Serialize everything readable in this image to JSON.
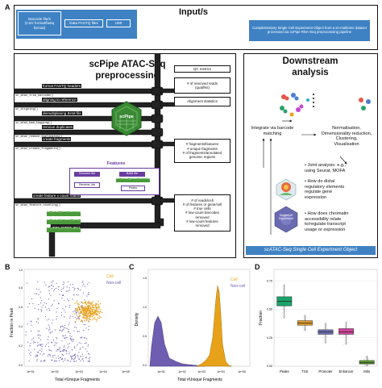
{
  "panel_labels": {
    "a": "A",
    "b": "B",
    "c": "C",
    "d": "D"
  },
  "inputs": {
    "title": "Input/s",
    "barcode_files": "Barcode file/s\n(CSV format/fastq\nformat)",
    "data_fastq": "Data FASTQ files",
    "umi": "UMI",
    "complementary": "Complementary Single Cell Experiment Object from a sn-multiome dataset processed via scPipe RNA-Seq preprocessing pipeline"
  },
  "preprocessing": {
    "title_line1": "scPipe ATAC-Seq",
    "title_line2": "preprocessing",
    "logo_text": "scPipe",
    "steps": [
      {
        "label": "format FASTQ headers",
        "func": "sc_atac_trim_barcode()"
      },
      {
        "label": "aligning to reference",
        "func": "sc_aligning()"
      },
      {
        "label": "demultiplexing BAM file",
        "func": "sc_atac_bam_tagging()"
      },
      {
        "label": "remove duplicates",
        "func": "sc_atac_remove_duplicates()"
      },
      {
        "label": "create fragments",
        "func": "sc_atac_create_fragments()"
      },
      {
        "label": "create feature x count matrix",
        "func": "sc_atac_feature_counting()"
      }
    ],
    "qc_title": "QC metrics",
    "qc_boxes": [
      "# of removed reads\n(qual/Ns)",
      "Alignment statistics",
      "# fragments/features\n# unique fragments\n# of fragments/annotated\ngenomic regions",
      "# of reads/cell\n# of features or gene/cell\n# true cells\n# low-count barcodes\nremoved\n# low-count features\nremoved"
    ],
    "features": {
      "title": "Features",
      "genome_file": "Genome file",
      "bam_file": "BAM file",
      "genome_bin": "Genome_bin",
      "peak_calling": "sc_atac_peak_calling()",
      "peaks": "Peaks"
    },
    "green_funcs": [
      "sc_atac_cell_calling()",
      "sc_atac_create_sce()",
      "sc_atac_create_qc()"
    ]
  },
  "downstream": {
    "title_line1": "Downstream",
    "title_line2": "analysis",
    "integrate": "Integrate via barcode\nmatching",
    "normalisation": "Normalisation,\nDimensionality reduction,\nClustering,\nVisualisation",
    "bullets": [
      "Joint analysis: e.g.,\nusing Seurat, MOFA",
      "How do distal\nregulatory elements\nregulate gene\nexpression",
      "How does chromatin\naccessibility relate\nto/regulate transcript\nusage or expression"
    ],
    "sce_label_prefix": "scATAC-Seq",
    "sce_label_suffix": " Object",
    "sce_label_italic": "Single Cell Experiment",
    "logo_text": "SingleCell\nExperiment"
  },
  "colors": {
    "blue": "#3f82c4",
    "orange": "#e8a21a",
    "purple": "#6e5db0",
    "green": "#4a9a3a"
  },
  "panel_b": {
    "ylabel": "Fraction in Peak",
    "xlabel": "Total #Unique Fragments",
    "xticks": [
      "1e+01",
      "1e+02",
      "1e+03",
      "1e+04",
      "1e+05"
    ],
    "yticks": [
      "0.0",
      "0.2",
      "0.4",
      "0.6",
      "0.8",
      "1.0"
    ],
    "legend": [
      "Cell",
      "Non-cell"
    ]
  },
  "panel_c": {
    "ylabel": "Density",
    "xlabel": "Total #Unique Fragments",
    "xticks": [
      "1e+01",
      "1e+02",
      "1e+03",
      "1e+04",
      "1e+05"
    ],
    "yticks": [
      "0.0",
      "0.5",
      "1.0",
      "1.5"
    ],
    "legend": [
      "Cell",
      "Non-cell"
    ]
  },
  "chart_data": {
    "type": "box",
    "ylabel": "Fraction",
    "categories": [
      "Peaks",
      "TSS",
      "Promoter",
      "Enhancer",
      "Mito"
    ],
    "yticks": [
      "0.00",
      "0.25",
      "0.50",
      "0.75"
    ],
    "ylim": [
      0,
      0.85
    ],
    "colors": [
      "#1aa36a",
      "#e09a2a",
      "#6b6fb3",
      "#d0449a",
      "#5c9a2e"
    ],
    "boxes": [
      {
        "q1": 0.53,
        "median": 0.57,
        "q3": 0.61,
        "low": 0.42,
        "high": 0.72
      },
      {
        "q1": 0.36,
        "median": 0.38,
        "q3": 0.4,
        "low": 0.31,
        "high": 0.45
      },
      {
        "q1": 0.28,
        "median": 0.3,
        "q3": 0.32,
        "low": 0.2,
        "high": 0.38
      },
      {
        "q1": 0.28,
        "median": 0.3,
        "q3": 0.33,
        "low": 0.19,
        "high": 0.39
      },
      {
        "q1": 0.02,
        "median": 0.03,
        "q3": 0.05,
        "low": 0.0,
        "high": 0.09
      }
    ]
  }
}
